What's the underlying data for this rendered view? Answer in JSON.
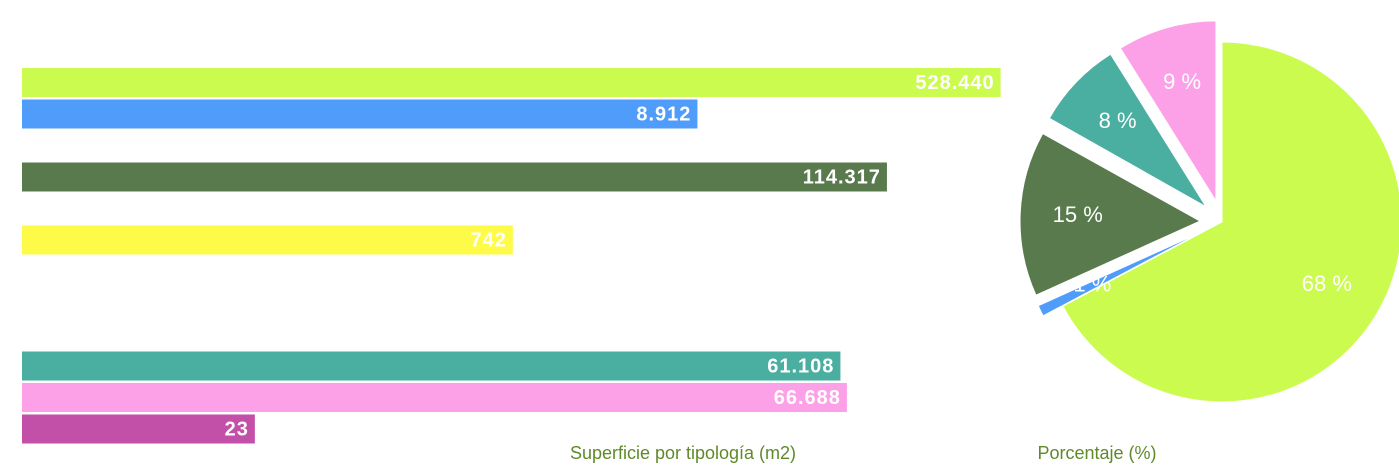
{
  "chart_data": [
    {
      "type": "bar",
      "orientation": "horizontal",
      "log": true,
      "title": "Superficie por tipología (m2)",
      "categories": [
        null,
        null,
        null,
        null,
        null,
        null,
        null,
        null,
        null,
        null,
        null,
        null
      ],
      "values": [
        528440,
        8912,
        null,
        114317,
        null,
        742,
        null,
        null,
        null,
        61108,
        66688,
        23
      ],
      "value_labels": [
        "528.440",
        "8.912",
        null,
        "114.317",
        null,
        "742",
        null,
        null,
        null,
        "61.108",
        "66.688",
        "23"
      ],
      "colors": [
        "#ccfb50",
        "#4f9cfb",
        null,
        "#587a4c",
        null,
        "#fdfb47",
        null,
        null,
        null,
        "#4aaea0",
        "#fca0e8",
        "#c24fa8"
      ],
      "xlim": [
        1,
        1000000
      ]
    },
    {
      "type": "pie",
      "title": "Porcentaje (%)",
      "values": [
        68,
        1,
        15,
        0.1,
        8,
        9
      ],
      "value_labels": [
        "68 %",
        "1 %",
        "15 %",
        null,
        "8 %",
        "9 %"
      ],
      "colors": [
        "#ccfb50",
        "#4f9cfb",
        "#587a4c",
        "#fdfb47",
        "#4aaea0",
        "#fca0e8"
      ],
      "exploded": [
        false,
        true,
        true,
        true,
        true,
        true
      ]
    }
  ]
}
